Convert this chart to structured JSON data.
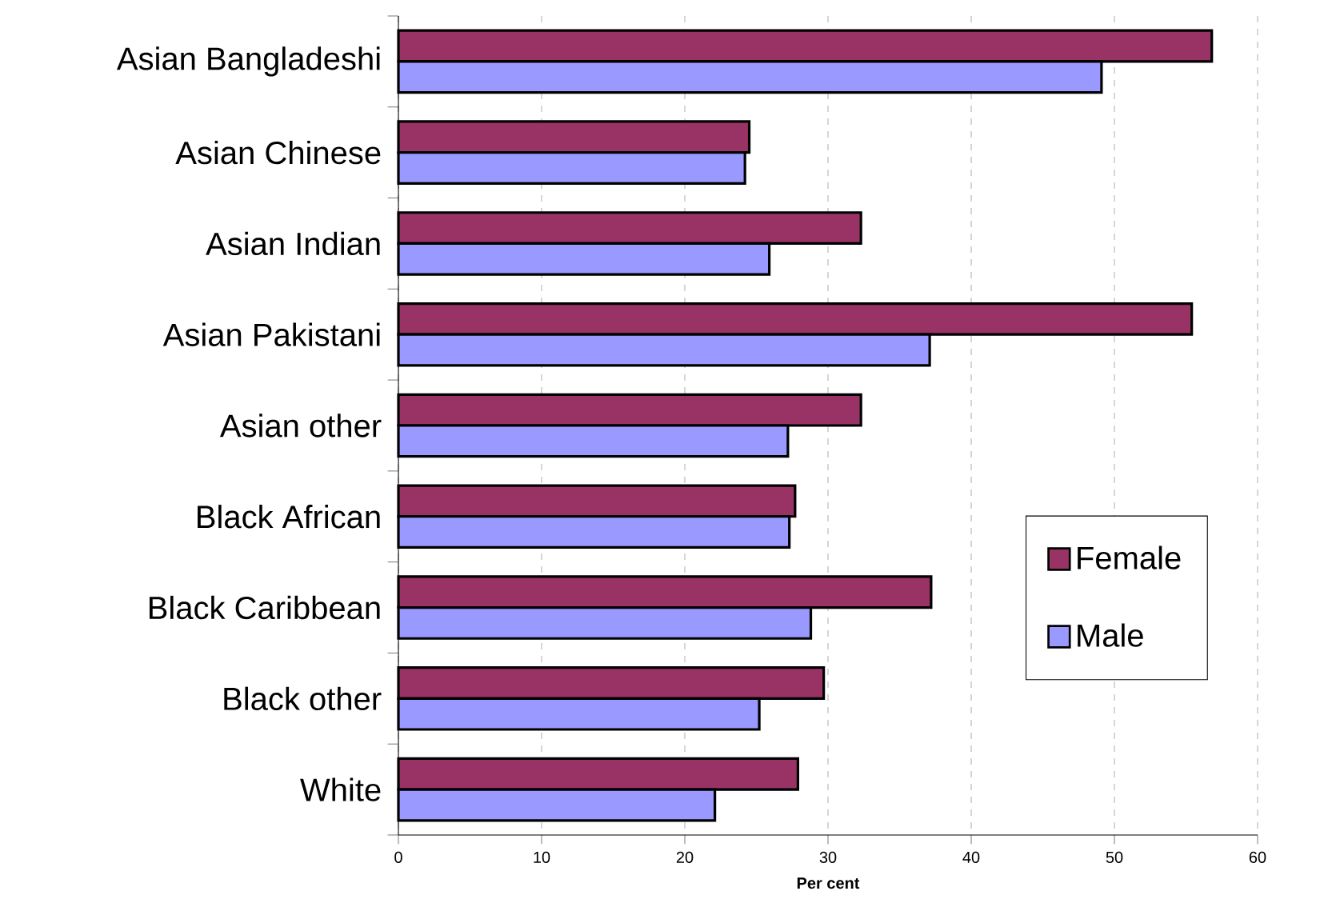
{
  "chart_data": {
    "type": "bar",
    "orientation": "horizontal",
    "xlabel": "Per cent",
    "categories": [
      "Asian Bangladeshi",
      "Asian Chinese",
      "Asian Indian",
      "Asian Pakistani",
      "Asian other",
      "Black African",
      "Black Caribbean",
      "Black other",
      "White"
    ],
    "series": [
      {
        "name": "Female",
        "color": "#993366",
        "values": [
          56.8,
          24.5,
          32.3,
          55.4,
          32.3,
          27.7,
          37.2,
          29.7,
          27.9
        ]
      },
      {
        "name": "Male",
        "color": "#9999ff",
        "values": [
          49.1,
          24.2,
          25.9,
          37.1,
          27.2,
          27.3,
          28.8,
          25.2,
          22.1
        ]
      }
    ],
    "xlim": [
      0,
      60
    ],
    "xticks": [
      0,
      10,
      20,
      30,
      40,
      50,
      60
    ],
    "grid": "x",
    "legend": "right"
  }
}
